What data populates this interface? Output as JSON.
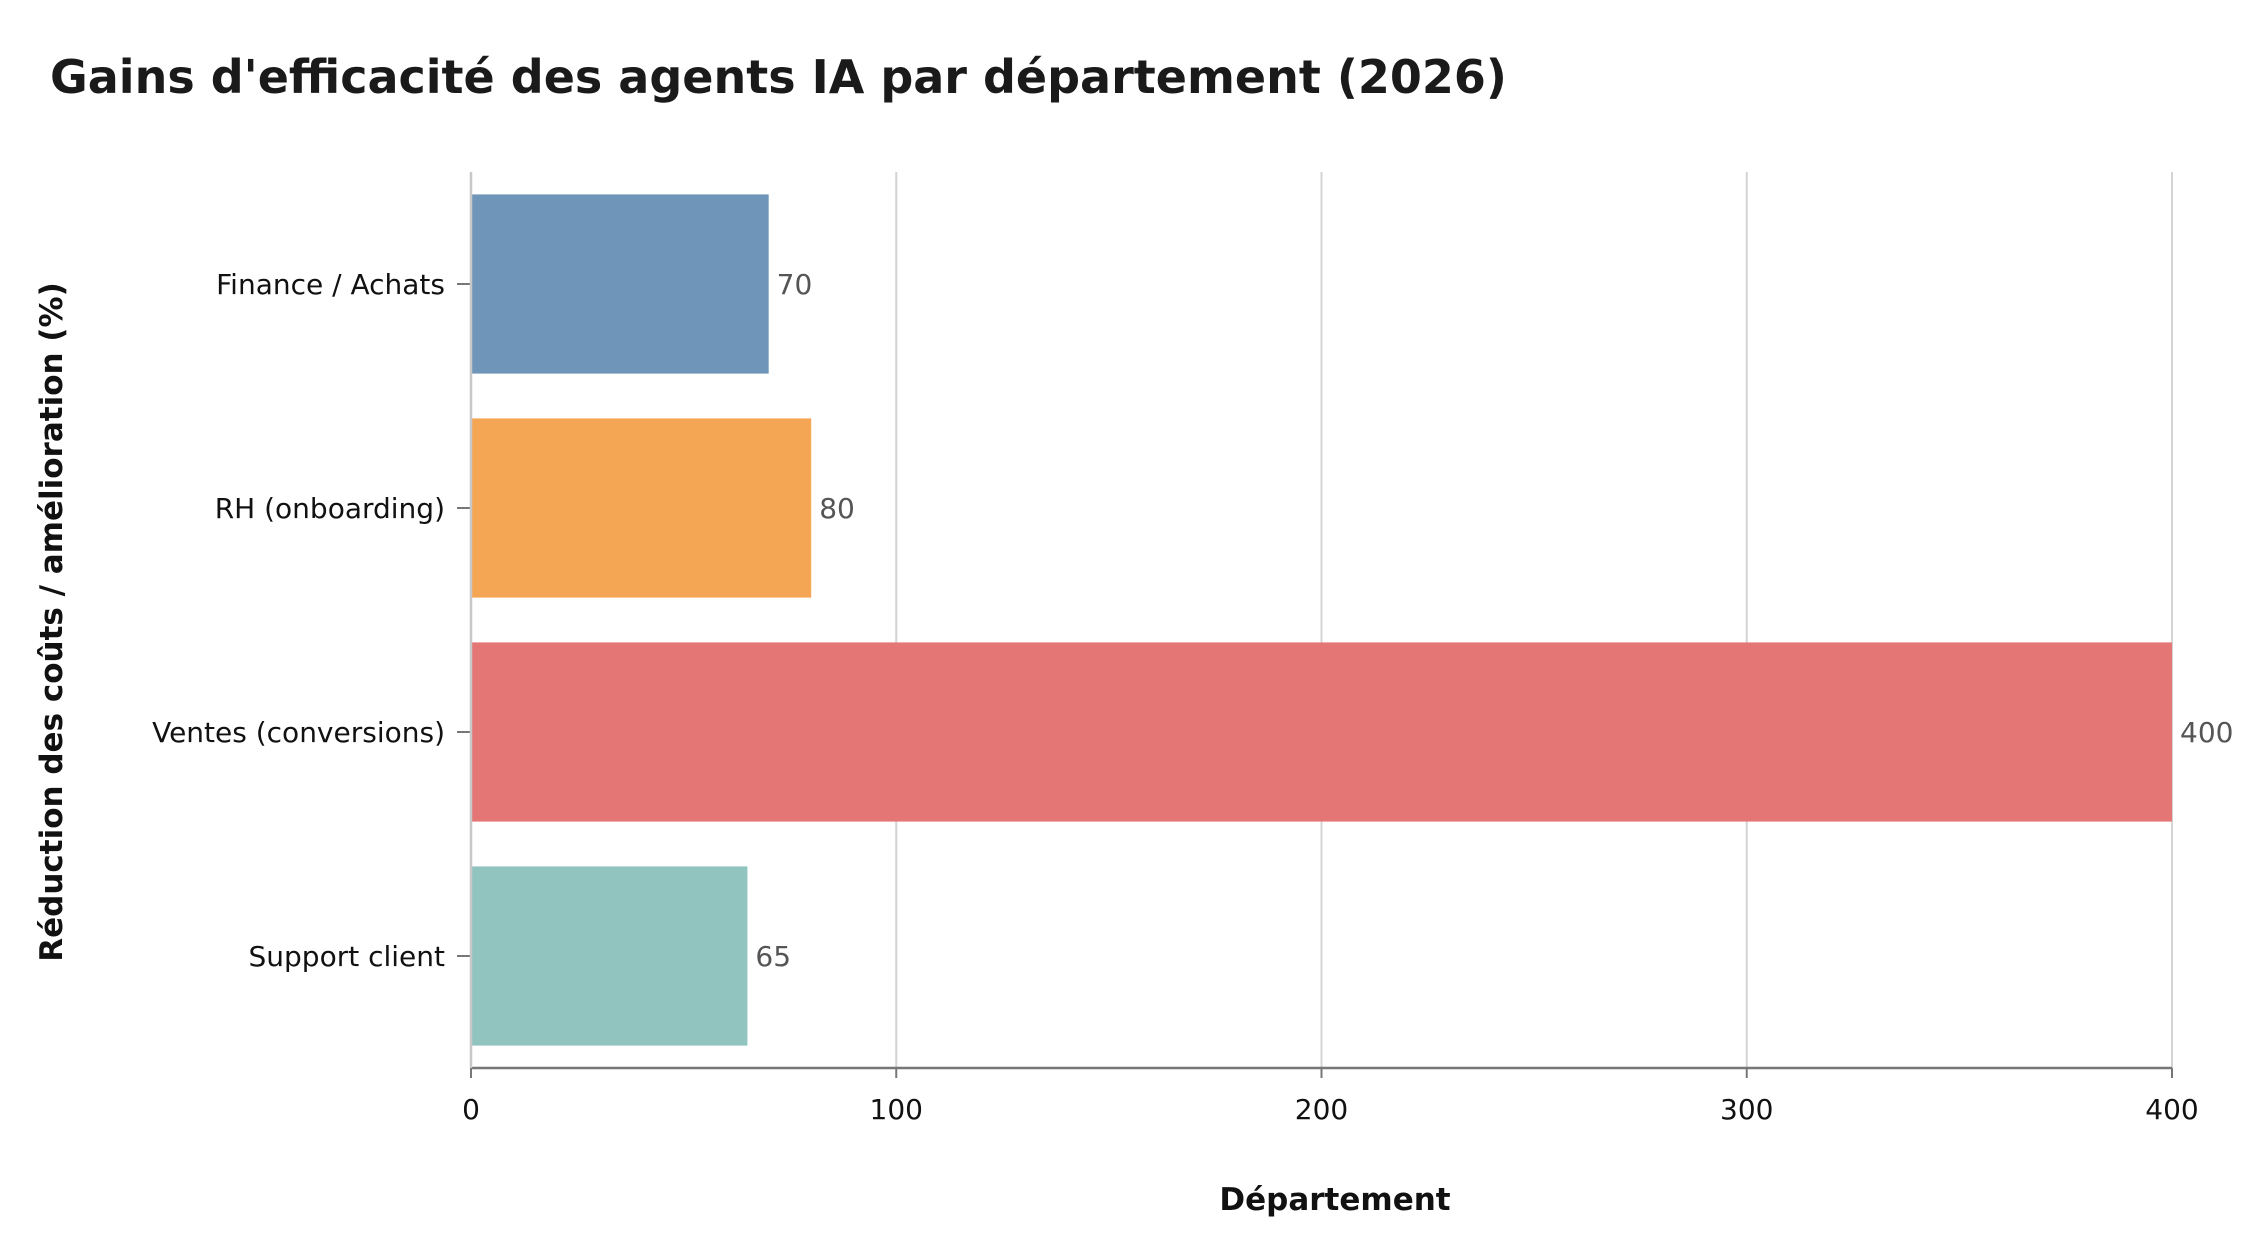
{
  "chart_data": {
    "type": "bar",
    "orientation": "horizontal",
    "title": "Gains d'efficacité des agents IA par département (2026)",
    "xlabel": "Département",
    "ylabel": "Réduction des coûts / amélioration (%)",
    "categories": [
      "Finance / Achats",
      "RH (onboarding)",
      "Ventes (conversions)",
      "Support client"
    ],
    "values": [
      70,
      80,
      400,
      65
    ],
    "data_labels": [
      "70",
      "80",
      "400",
      "65"
    ],
    "colors": [
      "#6f95b9",
      "#f4a655",
      "#e57676",
      "#91c4bf"
    ],
    "xlim": [
      0,
      400
    ],
    "xticks": [
      0,
      100,
      200,
      300,
      400
    ],
    "xtick_labels": [
      "0",
      "100",
      "200",
      "300",
      "400"
    ],
    "grid": "vertical",
    "legend": "none"
  }
}
